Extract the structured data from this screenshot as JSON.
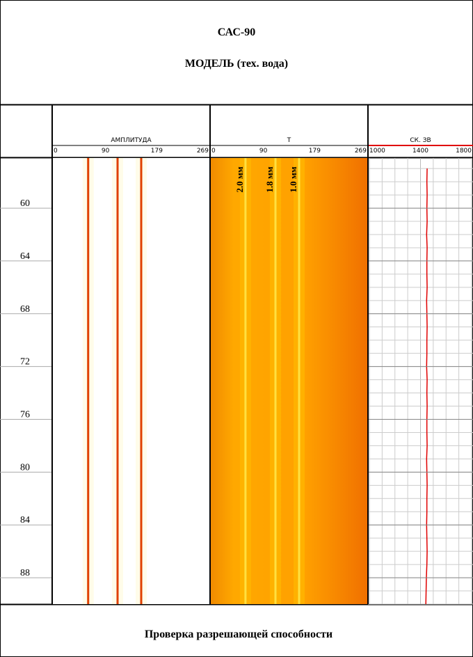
{
  "header": {
    "title": "САС-90",
    "subtitle": "МОДЕЛЬ (тех. вода)"
  },
  "depth_axis": {
    "ylim": [
      56.2,
      90
    ],
    "yticks": [
      60,
      64,
      68,
      72,
      76,
      80,
      84,
      88
    ]
  },
  "chart_data": [
    {
      "type": "image-track",
      "title": "АМПЛИТУДА",
      "xlim": [
        0,
        269
      ],
      "xticks": [
        0,
        90,
        179,
        269
      ],
      "background": "#ffffff",
      "line_color": "#e04000",
      "lines": [
        60,
        111,
        152
      ]
    },
    {
      "type": "image-track",
      "title": "Т",
      "xlim": [
        0,
        269
      ],
      "xticks": [
        0,
        90,
        179,
        269
      ],
      "background": "#ffa000",
      "line_color": "#ffe040",
      "lines": [
        59,
        111,
        152
      ],
      "line_labels": [
        "2.0 мм",
        "1.8 мм",
        "1.0 мм"
      ]
    },
    {
      "type": "line",
      "title": "СК. ЗВ",
      "xlim": [
        1000,
        1800
      ],
      "xticks": [
        1000,
        1400,
        1800
      ],
      "grid": true,
      "color": "#e00000",
      "x": [
        57,
        58,
        59,
        60,
        61,
        62,
        63,
        64,
        65,
        66,
        67,
        68,
        69,
        70,
        71,
        72,
        73,
        74,
        75,
        76,
        77,
        78,
        79,
        80,
        81,
        82,
        83,
        84,
        85,
        86,
        87,
        88,
        89,
        90
      ],
      "values": [
        1452,
        1450,
        1452,
        1450,
        1452,
        1448,
        1452,
        1450,
        1450,
        1452,
        1448,
        1450,
        1452,
        1450,
        1450,
        1448,
        1452,
        1450,
        1452,
        1450,
        1450,
        1452,
        1448,
        1450,
        1452,
        1450,
        1450,
        1448,
        1450,
        1452,
        1450,
        1446,
        1444,
        1442
      ]
    }
  ],
  "footer": "Проверка разрешающей способности"
}
